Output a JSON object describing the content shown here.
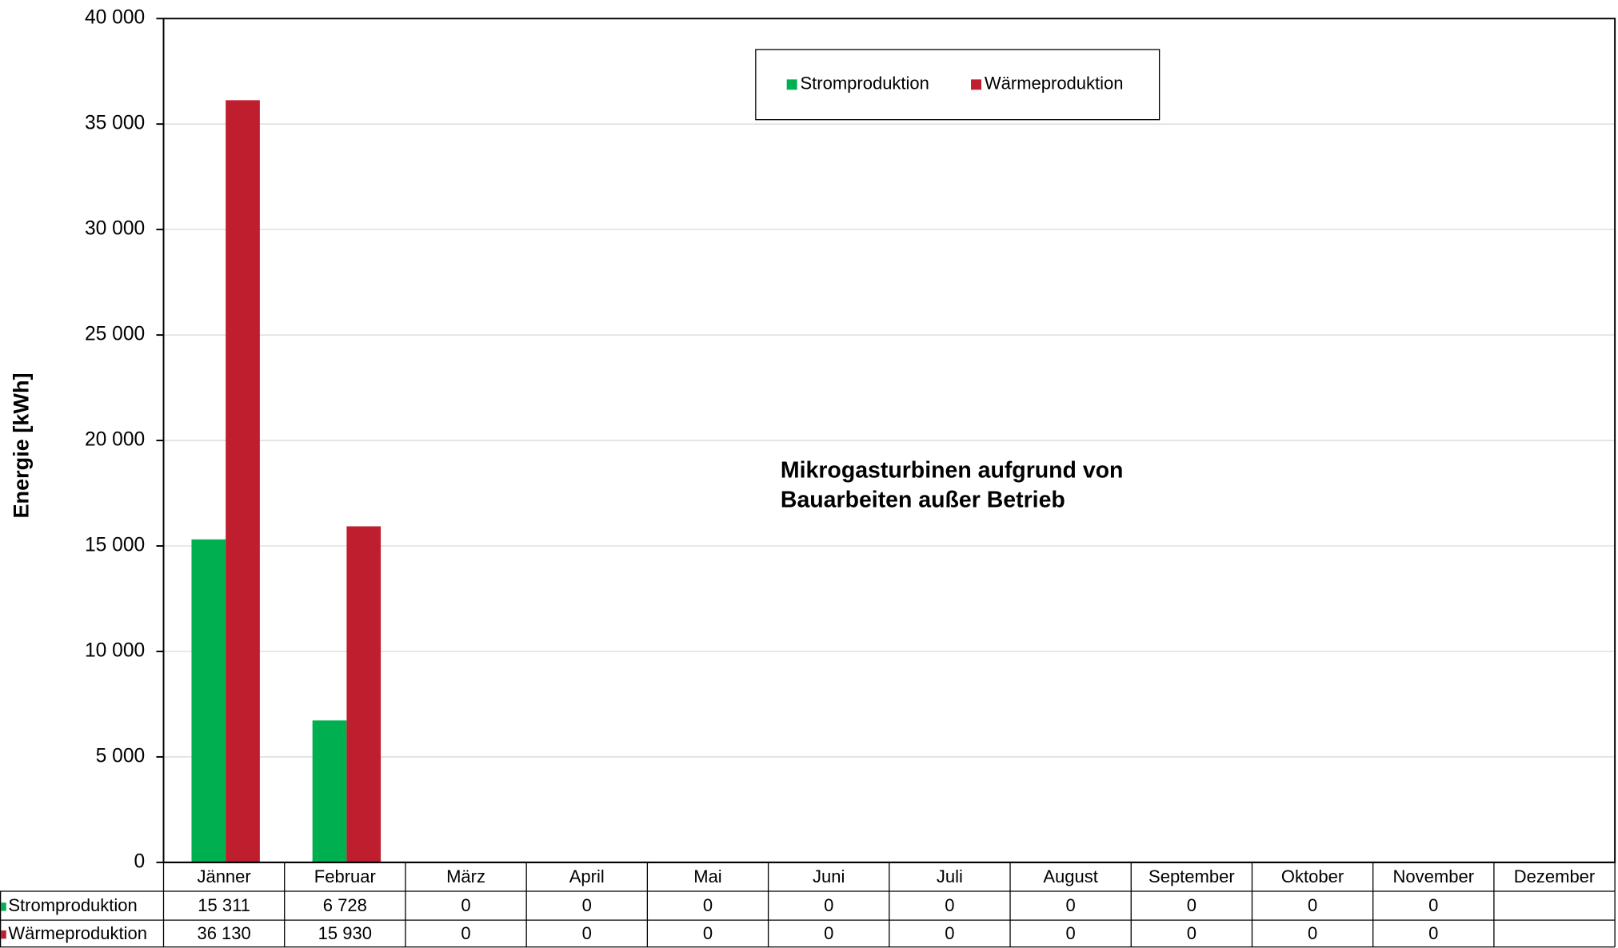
{
  "chart_data": {
    "type": "bar",
    "y_label": "Energie [kWh]",
    "annotation": [
      "Mikrogasturbinen aufgrund von",
      "Bauarbeiten außer Betrieb"
    ],
    "categories": [
      "Jänner",
      "Februar",
      "März",
      "April",
      "Mai",
      "Juni",
      "Juli",
      "August",
      "September",
      "Oktober",
      "November",
      "Dezember"
    ],
    "series": [
      {
        "name": "Stromproduktion",
        "color": "#00b050",
        "values": [
          15311,
          6728,
          0,
          0,
          0,
          0,
          0,
          0,
          0,
          0,
          0,
          null
        ],
        "value_labels": [
          "15 311",
          "6 728",
          "0",
          "0",
          "0",
          "0",
          "0",
          "0",
          "0",
          "0",
          "0",
          null
        ]
      },
      {
        "name": "Wärmeproduktion",
        "color": "#be1e2d",
        "values": [
          36130,
          15930,
          0,
          0,
          0,
          0,
          0,
          0,
          0,
          0,
          0,
          null
        ],
        "value_labels": [
          "36 130",
          "15 930",
          "0",
          "0",
          "0",
          "0",
          "0",
          "0",
          "0",
          "0",
          "0",
          null
        ]
      }
    ],
    "ylim": [
      0,
      40000
    ],
    "yticks": [
      0,
      {
        "value": 5000,
        "label": "5 000"
      },
      {
        "value": 10000,
        "label": "10 000"
      },
      {
        "value": 15000,
        "label": "15 000"
      },
      {
        "value": 20000,
        "label": "20 000"
      },
      {
        "value": 25000,
        "label": "25 000"
      },
      {
        "value": 30000,
        "label": "30 000"
      },
      {
        "value": 35000,
        "label": "35 000"
      },
      {
        "value": 40000,
        "label": "40 000"
      }
    ],
    "grid": true,
    "legend": "top"
  }
}
